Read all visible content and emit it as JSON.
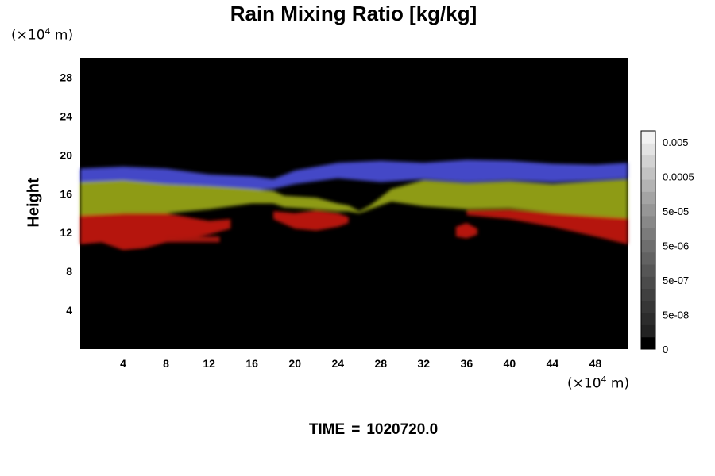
{
  "chart_data": {
    "type": "heatmap",
    "title": "Rain Mixing Ratio [kg/kg]",
    "ylabel": "Height",
    "xlabel": "",
    "x_unit": {
      "prefix": "(×10",
      "exp": "4",
      "suffix": " m)"
    },
    "y_unit": {
      "prefix": "(×10",
      "exp": "4",
      "suffix": " m)"
    },
    "xlim": [
      0,
      51
    ],
    "ylim": [
      0,
      30
    ],
    "x_ticks": [
      4,
      8,
      12,
      16,
      20,
      24,
      28,
      32,
      36,
      40,
      44,
      48
    ],
    "y_ticks": [
      4,
      8,
      12,
      16,
      20,
      24,
      28
    ],
    "colorbar": {
      "labels": [
        "0.005",
        "0.0005",
        "5e-05",
        "5e-06",
        "5e-07",
        "5e-08",
        "0"
      ],
      "colors": [
        "#000000",
        "#222222",
        "#2c2c2c",
        "#363636",
        "#404040",
        "#4b4b4b",
        "#565656",
        "#626262",
        "#6e6e6e",
        "#7b7b7b",
        "#888888",
        "#969696",
        "#a4a4a4",
        "#b3b3b3",
        "#c2c2c2",
        "#d2d2d2",
        "#e3e3e3",
        "#f2f2f2"
      ]
    },
    "bands": [
      {
        "name": "blue",
        "color": "#4a4ed8",
        "top": [
          [
            0,
            18.6
          ],
          [
            4,
            18.8
          ],
          [
            8,
            18.6
          ],
          [
            12,
            18.0
          ],
          [
            16,
            17.8
          ],
          [
            18,
            17.5
          ],
          [
            20,
            18.4
          ],
          [
            24,
            19.2
          ],
          [
            28,
            19.4
          ],
          [
            32,
            19.2
          ],
          [
            36,
            19.5
          ],
          [
            40,
            19.4
          ],
          [
            44,
            19.1
          ],
          [
            48,
            19.0
          ],
          [
            51,
            19.2
          ]
        ],
        "bottom": [
          [
            0,
            17.0
          ],
          [
            4,
            17.3
          ],
          [
            8,
            17.0
          ],
          [
            12,
            16.8
          ],
          [
            16,
            16.4
          ],
          [
            18,
            16.5
          ],
          [
            20,
            17.0
          ],
          [
            24,
            17.6
          ],
          [
            28,
            17.2
          ],
          [
            32,
            17.5
          ],
          [
            36,
            17.2
          ],
          [
            40,
            17.4
          ],
          [
            44,
            17.2
          ],
          [
            48,
            17.4
          ],
          [
            51,
            17.6
          ]
        ]
      },
      {
        "name": "yellow",
        "color": "#9aa816",
        "top": [
          [
            0,
            17.2
          ],
          [
            4,
            17.4
          ],
          [
            8,
            17.0
          ],
          [
            12,
            16.8
          ],
          [
            16,
            16.5
          ],
          [
            18,
            16.3
          ],
          [
            19,
            15.8
          ],
          [
            22,
            15.6
          ],
          [
            24,
            15.0
          ],
          [
            25,
            14.8
          ],
          [
            26,
            14.2
          ],
          [
            27,
            14.8
          ],
          [
            29,
            16.5
          ],
          [
            32,
            17.4
          ],
          [
            36,
            17.1
          ],
          [
            40,
            17.3
          ],
          [
            44,
            17.0
          ],
          [
            48,
            17.3
          ],
          [
            51,
            17.5
          ]
        ],
        "bottom": [
          [
            0,
            13.6
          ],
          [
            4,
            14.0
          ],
          [
            8,
            14.0
          ],
          [
            12,
            14.4
          ],
          [
            16,
            15.0
          ],
          [
            18,
            15.0
          ],
          [
            19,
            14.6
          ],
          [
            22,
            14.4
          ],
          [
            24,
            14.2
          ],
          [
            25,
            14.2
          ],
          [
            26,
            14.0
          ],
          [
            27,
            14.4
          ],
          [
            29,
            15.2
          ],
          [
            32,
            14.7
          ],
          [
            36,
            14.4
          ],
          [
            40,
            14.5
          ],
          [
            44,
            14.0
          ],
          [
            48,
            13.6
          ],
          [
            51,
            13.4
          ]
        ]
      },
      {
        "name": "red",
        "color": "#c41a12",
        "top": [
          [
            0,
            13.8
          ],
          [
            4,
            14.0
          ],
          [
            8,
            14.0
          ],
          [
            10,
            13.6
          ],
          [
            12,
            13.2
          ],
          [
            14,
            13.4
          ]
        ],
        "bottom": [
          [
            0,
            10.8
          ],
          [
            2,
            11.0
          ],
          [
            4,
            10.2
          ],
          [
            6,
            10.4
          ],
          [
            8,
            11.0
          ],
          [
            10,
            11.4
          ],
          [
            12,
            11.8
          ],
          [
            14,
            12.4
          ]
        ]
      },
      {
        "name": "red",
        "color": "#c41a12",
        "top": [
          [
            18,
            14.2
          ],
          [
            20,
            14.0
          ],
          [
            22,
            14.3
          ],
          [
            24,
            14.0
          ],
          [
            25,
            13.6
          ]
        ],
        "bottom": [
          [
            18,
            13.4
          ],
          [
            20,
            12.4
          ],
          [
            22,
            12.2
          ],
          [
            24,
            12.6
          ],
          [
            25,
            13.0
          ]
        ]
      },
      {
        "name": "red",
        "color": "#c41a12",
        "top": [
          [
            35,
            12.6
          ],
          [
            36,
            13.0
          ],
          [
            37,
            12.4
          ]
        ],
        "bottom": [
          [
            35,
            11.6
          ],
          [
            36,
            11.4
          ],
          [
            37,
            11.8
          ]
        ]
      },
      {
        "name": "red",
        "color": "#c41a12",
        "top": [
          [
            36,
            14.3
          ],
          [
            40,
            14.4
          ],
          [
            44,
            14.0
          ],
          [
            48,
            13.7
          ],
          [
            51,
            13.5
          ]
        ],
        "bottom": [
          [
            36,
            13.8
          ],
          [
            40,
            13.4
          ],
          [
            44,
            12.6
          ],
          [
            48,
            11.6
          ],
          [
            51,
            10.8
          ]
        ]
      },
      {
        "name": "red-dots",
        "color": "#b01510",
        "top": [
          [
            8,
            11.6
          ],
          [
            13,
            11.6
          ]
        ],
        "bottom": [
          [
            8,
            11.0
          ],
          [
            13,
            11.0
          ]
        ]
      }
    ]
  },
  "time": {
    "label": "TIME",
    "eq": "=",
    "value": "1020720.0"
  }
}
